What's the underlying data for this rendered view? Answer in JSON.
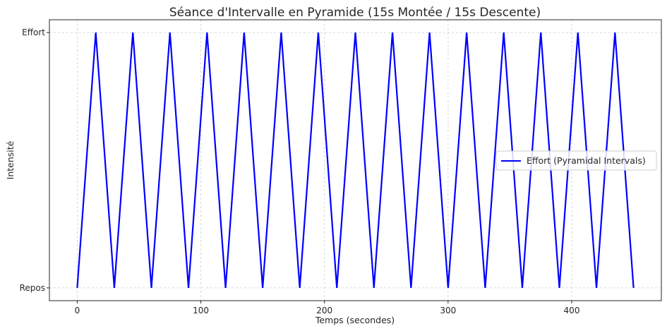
{
  "chart_data": {
    "type": "line",
    "title": "Séance d'Intervalle en Pyramide (15s Montée / 15s Descente)",
    "xlabel": "Temps (secondes)",
    "ylabel": "Intensité",
    "xlim": [
      -22.5,
      472.5
    ],
    "ylim": [
      -0.05,
      1.05
    ],
    "x_ticks": [
      0,
      100,
      200,
      300,
      400
    ],
    "y_ticks": [
      {
        "value": 0,
        "label": "Repos"
      },
      {
        "value": 1,
        "label": "Effort"
      }
    ],
    "grid": true,
    "grid_style": "dashed",
    "legend_position": "center-right",
    "series": [
      {
        "name": "Effort (Pyramidal Intervals)",
        "color": "#0000ff",
        "x": [
          0,
          15,
          30,
          45,
          60,
          75,
          90,
          105,
          120,
          135,
          150,
          165,
          180,
          195,
          210,
          225,
          240,
          255,
          270,
          285,
          300,
          315,
          330,
          345,
          360,
          375,
          390,
          405,
          420,
          435,
          450
        ],
        "y": [
          0,
          1,
          0,
          1,
          0,
          1,
          0,
          1,
          0,
          1,
          0,
          1,
          0,
          1,
          0,
          1,
          0,
          1,
          0,
          1,
          0,
          1,
          0,
          1,
          0,
          1,
          0,
          1,
          0,
          1,
          0
        ]
      }
    ]
  }
}
